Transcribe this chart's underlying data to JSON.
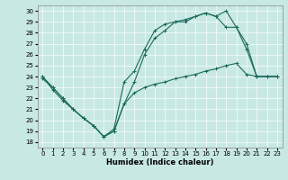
{
  "xlabel": "Humidex (Indice chaleur)",
  "xlim": [
    -0.5,
    23.5
  ],
  "ylim": [
    17.5,
    30.5
  ],
  "xticks": [
    0,
    1,
    2,
    3,
    4,
    5,
    6,
    7,
    8,
    9,
    10,
    11,
    12,
    13,
    14,
    15,
    16,
    17,
    18,
    19,
    20,
    21,
    22,
    23
  ],
  "yticks": [
    18,
    19,
    20,
    21,
    22,
    23,
    24,
    25,
    26,
    27,
    28,
    29,
    30
  ],
  "background_color": "#c8e8e4",
  "grid_color": "#f0fafa",
  "line_color": "#1a6b5a",
  "curve1_y": [
    24.0,
    22.8,
    21.8,
    21.0,
    20.2,
    19.5,
    18.5,
    19.0,
    21.5,
    22.5,
    23.0,
    23.3,
    23.5,
    23.8,
    24.0,
    24.2,
    24.5,
    24.7,
    25.0,
    25.2,
    24.2,
    24.0,
    24.0,
    24.0
  ],
  "curve2_y": [
    24.0,
    23.0,
    22.0,
    21.0,
    20.2,
    19.5,
    18.5,
    19.2,
    23.5,
    24.5,
    26.5,
    28.2,
    28.8,
    29.0,
    29.2,
    29.5,
    29.8,
    29.5,
    30.0,
    28.5,
    27.0,
    24.0,
    24.0,
    24.0
  ],
  "curve3_y": [
    23.8,
    23.0,
    22.0,
    21.0,
    20.2,
    19.5,
    18.5,
    19.0,
    21.5,
    23.5,
    26.0,
    27.5,
    28.2,
    29.0,
    29.0,
    29.5,
    29.8,
    29.5,
    28.5,
    28.5,
    26.5,
    24.0,
    24.0,
    24.0
  ]
}
